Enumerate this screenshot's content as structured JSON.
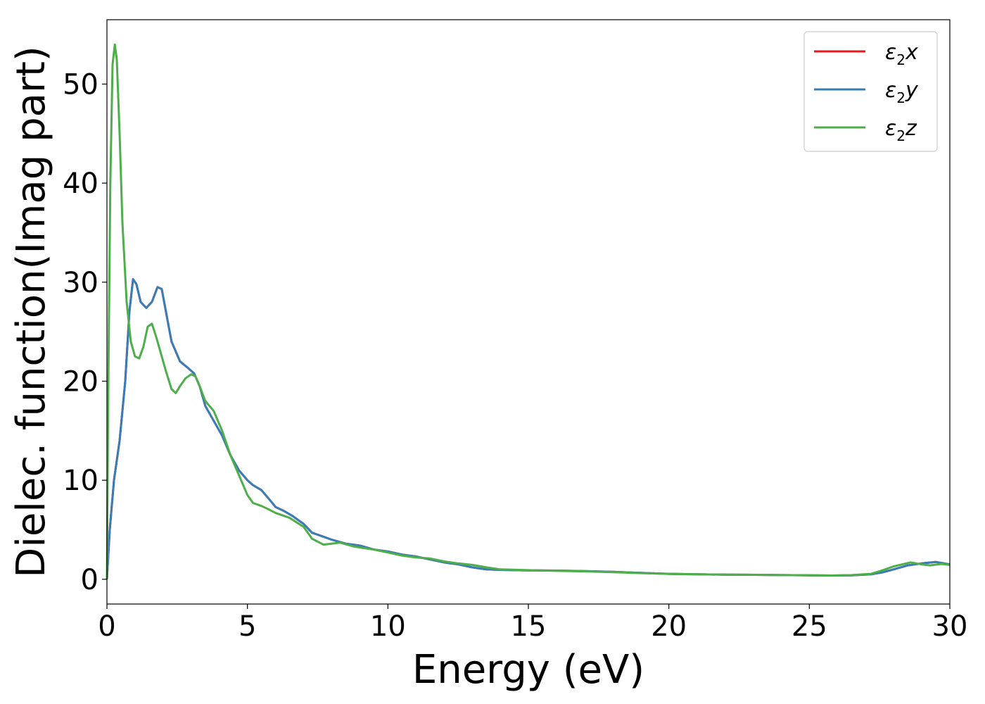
{
  "chart_data": {
    "type": "line",
    "xlabel": "Energy (eV)",
    "ylabel": "Dielec. function(Imag part)",
    "xlim": [
      0,
      30
    ],
    "ylim": [
      -2.5,
      56.5
    ],
    "x_ticks": [
      0,
      5,
      10,
      15,
      20,
      25,
      30
    ],
    "y_ticks": [
      0,
      10,
      20,
      30,
      40,
      50
    ],
    "grid": false,
    "legend_position": "top-right",
    "series": [
      {
        "name": "ε₂x",
        "legend": {
          "symbol": "ε",
          "sub": "2",
          "axis": "x"
        },
        "color": "#e41a1c",
        "points": [
          [
            0,
            0
          ],
          [
            0.1,
            5
          ],
          [
            0.25,
            10
          ],
          [
            0.45,
            14
          ],
          [
            0.65,
            20
          ],
          [
            0.8,
            27
          ],
          [
            0.93,
            30.3
          ],
          [
            1.05,
            29.8
          ],
          [
            1.2,
            28
          ],
          [
            1.4,
            27.4
          ],
          [
            1.6,
            28
          ],
          [
            1.8,
            29.5
          ],
          [
            1.95,
            29.3
          ],
          [
            2.1,
            27
          ],
          [
            2.3,
            24
          ],
          [
            2.6,
            22
          ],
          [
            2.9,
            21.3
          ],
          [
            3.1,
            20.8
          ],
          [
            3.3,
            19.5
          ],
          [
            3.5,
            17.5
          ],
          [
            3.8,
            16
          ],
          [
            4.1,
            14.5
          ],
          [
            4.4,
            12.5
          ],
          [
            4.7,
            11
          ],
          [
            5.0,
            10
          ],
          [
            5.2,
            9.5
          ],
          [
            5.5,
            9
          ],
          [
            5.8,
            8
          ],
          [
            6.0,
            7.3
          ],
          [
            6.3,
            6.9
          ],
          [
            6.6,
            6.4
          ],
          [
            7.0,
            5.6
          ],
          [
            7.3,
            4.7
          ],
          [
            7.7,
            4.3
          ],
          [
            8.0,
            4.0
          ],
          [
            8.5,
            3.6
          ],
          [
            9.0,
            3.4
          ],
          [
            9.5,
            3.0
          ],
          [
            10.0,
            2.8
          ],
          [
            10.5,
            2.5
          ],
          [
            11,
            2.3
          ],
          [
            11.5,
            2.0
          ],
          [
            12,
            1.7
          ],
          [
            12.5,
            1.5
          ],
          [
            13,
            1.2
          ],
          [
            13.5,
            1.0
          ],
          [
            14,
            0.95
          ],
          [
            15,
            0.9
          ],
          [
            16,
            0.88
          ],
          [
            17,
            0.82
          ],
          [
            18,
            0.75
          ],
          [
            19,
            0.65
          ],
          [
            20,
            0.55
          ],
          [
            21,
            0.5
          ],
          [
            22,
            0.47
          ],
          [
            23,
            0.45
          ],
          [
            24,
            0.42
          ],
          [
            25,
            0.4
          ],
          [
            25.8,
            0.38
          ],
          [
            26.5,
            0.4
          ],
          [
            27.2,
            0.5
          ],
          [
            27.6,
            0.7
          ],
          [
            28,
            1.0
          ],
          [
            28.5,
            1.4
          ],
          [
            29,
            1.6
          ],
          [
            29.5,
            1.75
          ],
          [
            30,
            1.5
          ]
        ]
      },
      {
        "name": "ε₂y",
        "legend": {
          "symbol": "ε",
          "sub": "2",
          "axis": "y"
        },
        "color": "#377eb8",
        "points": [
          [
            0,
            0
          ],
          [
            0.1,
            5
          ],
          [
            0.25,
            10
          ],
          [
            0.45,
            14
          ],
          [
            0.65,
            20
          ],
          [
            0.8,
            27
          ],
          [
            0.93,
            30.3
          ],
          [
            1.05,
            29.8
          ],
          [
            1.2,
            28
          ],
          [
            1.4,
            27.4
          ],
          [
            1.6,
            28
          ],
          [
            1.8,
            29.5
          ],
          [
            1.95,
            29.3
          ],
          [
            2.1,
            27
          ],
          [
            2.3,
            24
          ],
          [
            2.6,
            22
          ],
          [
            2.9,
            21.3
          ],
          [
            3.1,
            20.8
          ],
          [
            3.3,
            19.5
          ],
          [
            3.5,
            17.5
          ],
          [
            3.8,
            16
          ],
          [
            4.1,
            14.5
          ],
          [
            4.4,
            12.5
          ],
          [
            4.7,
            11
          ],
          [
            5.0,
            10
          ],
          [
            5.2,
            9.5
          ],
          [
            5.5,
            9
          ],
          [
            5.8,
            8
          ],
          [
            6.0,
            7.3
          ],
          [
            6.3,
            6.9
          ],
          [
            6.6,
            6.4
          ],
          [
            7.0,
            5.6
          ],
          [
            7.3,
            4.7
          ],
          [
            7.7,
            4.3
          ],
          [
            8.0,
            4.0
          ],
          [
            8.5,
            3.6
          ],
          [
            9.0,
            3.4
          ],
          [
            9.5,
            3.0
          ],
          [
            10.0,
            2.8
          ],
          [
            10.5,
            2.5
          ],
          [
            11,
            2.3
          ],
          [
            11.5,
            2.0
          ],
          [
            12,
            1.7
          ],
          [
            12.5,
            1.5
          ],
          [
            13,
            1.2
          ],
          [
            13.5,
            1.0
          ],
          [
            14,
            0.95
          ],
          [
            15,
            0.9
          ],
          [
            16,
            0.88
          ],
          [
            17,
            0.82
          ],
          [
            18,
            0.75
          ],
          [
            19,
            0.65
          ],
          [
            20,
            0.55
          ],
          [
            21,
            0.5
          ],
          [
            22,
            0.47
          ],
          [
            23,
            0.45
          ],
          [
            24,
            0.42
          ],
          [
            25,
            0.4
          ],
          [
            25.8,
            0.38
          ],
          [
            26.5,
            0.4
          ],
          [
            27.2,
            0.5
          ],
          [
            27.6,
            0.7
          ],
          [
            28,
            1.0
          ],
          [
            28.5,
            1.4
          ],
          [
            29,
            1.6
          ],
          [
            29.5,
            1.75
          ],
          [
            30,
            1.5
          ]
        ]
      },
      {
        "name": "ε₂z",
        "legend": {
          "symbol": "ε",
          "sub": "2",
          "axis": "z"
        },
        "color": "#4daf4a",
        "points": [
          [
            0,
            0
          ],
          [
            0.05,
            20
          ],
          [
            0.12,
            40
          ],
          [
            0.2,
            52
          ],
          [
            0.28,
            54
          ],
          [
            0.35,
            52.5
          ],
          [
            0.45,
            45
          ],
          [
            0.55,
            36
          ],
          [
            0.7,
            28
          ],
          [
            0.85,
            24
          ],
          [
            1.0,
            22.5
          ],
          [
            1.15,
            22.3
          ],
          [
            1.3,
            23.5
          ],
          [
            1.45,
            25.5
          ],
          [
            1.6,
            25.8
          ],
          [
            1.75,
            24.5
          ],
          [
            1.9,
            23
          ],
          [
            2.1,
            21
          ],
          [
            2.3,
            19.2
          ],
          [
            2.45,
            18.8
          ],
          [
            2.6,
            19.5
          ],
          [
            2.8,
            20.3
          ],
          [
            3.0,
            20.7
          ],
          [
            3.15,
            20.5
          ],
          [
            3.3,
            19.5
          ],
          [
            3.5,
            18
          ],
          [
            3.8,
            17
          ],
          [
            4.1,
            15
          ],
          [
            4.4,
            12.5
          ],
          [
            4.7,
            10.5
          ],
          [
            5.0,
            8.5
          ],
          [
            5.2,
            7.7
          ],
          [
            5.5,
            7.4
          ],
          [
            5.8,
            7
          ],
          [
            6.0,
            6.7
          ],
          [
            6.5,
            6.2
          ],
          [
            7.0,
            5.3
          ],
          [
            7.3,
            4.1
          ],
          [
            7.7,
            3.5
          ],
          [
            8.0,
            3.6
          ],
          [
            8.3,
            3.7
          ],
          [
            8.8,
            3.3
          ],
          [
            9.5,
            3.0
          ],
          [
            10.0,
            2.7
          ],
          [
            10.5,
            2.4
          ],
          [
            11,
            2.2
          ],
          [
            11.5,
            2.1
          ],
          [
            12,
            1.8
          ],
          [
            12.5,
            1.6
          ],
          [
            13,
            1.45
          ],
          [
            13.5,
            1.2
          ],
          [
            14,
            1.0
          ],
          [
            15,
            0.92
          ],
          [
            16,
            0.85
          ],
          [
            17,
            0.8
          ],
          [
            18,
            0.72
          ],
          [
            19,
            0.62
          ],
          [
            20,
            0.55
          ],
          [
            21,
            0.5
          ],
          [
            22,
            0.47
          ],
          [
            23,
            0.46
          ],
          [
            24,
            0.42
          ],
          [
            25,
            0.4
          ],
          [
            25.8,
            0.38
          ],
          [
            26.5,
            0.42
          ],
          [
            27.2,
            0.55
          ],
          [
            27.6,
            0.9
          ],
          [
            28,
            1.3
          ],
          [
            28.6,
            1.7
          ],
          [
            29,
            1.5
          ],
          [
            29.3,
            1.4
          ],
          [
            29.7,
            1.55
          ],
          [
            30,
            1.45
          ]
        ]
      }
    ]
  }
}
